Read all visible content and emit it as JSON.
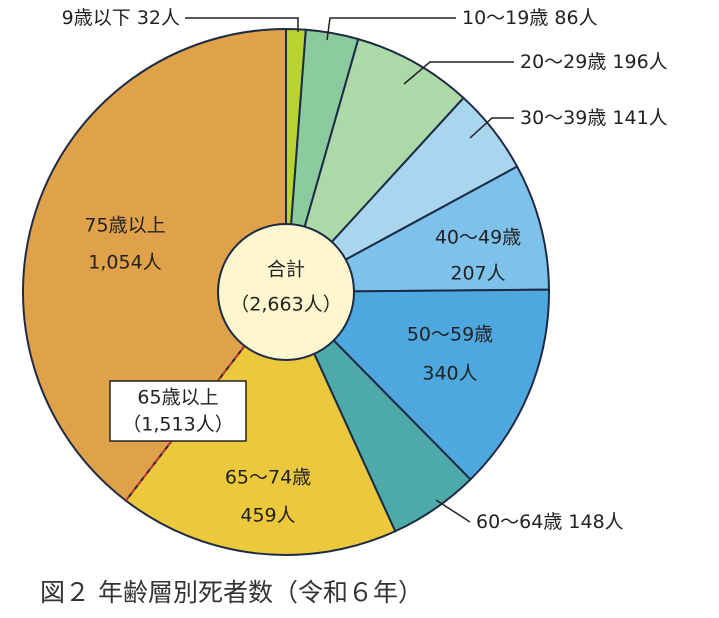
{
  "chart_data": {
    "type": "pie",
    "title": "図２ 年齢層別死者数（令和６年）",
    "categories": [
      "9歳以下",
      "10～19歳",
      "20～29歳",
      "30～39歳",
      "40～49歳",
      "50～59歳",
      "60～64歳",
      "65～74歳",
      "75歳以上"
    ],
    "values": [
      32,
      86,
      196,
      141,
      207,
      340,
      148,
      459,
      1054
    ],
    "value_labels": [
      "32人",
      "86人",
      "196人",
      "141人",
      "207人",
      "340人",
      "148人",
      "459人",
      "1,054人"
    ],
    "colors": [
      "#b9d431",
      "#8ccb9e",
      "#acd9a8",
      "#a9d5ee",
      "#7ec1ea",
      "#4ea7df",
      "#4daaa8",
      "#ecc93c",
      "#dfa24a"
    ],
    "total": {
      "label": "合計",
      "value": 2663,
      "value_label": "（2,663人）"
    },
    "group": {
      "label": "65歳以上",
      "value": 1513,
      "value_label": "（1,513人）"
    }
  }
}
